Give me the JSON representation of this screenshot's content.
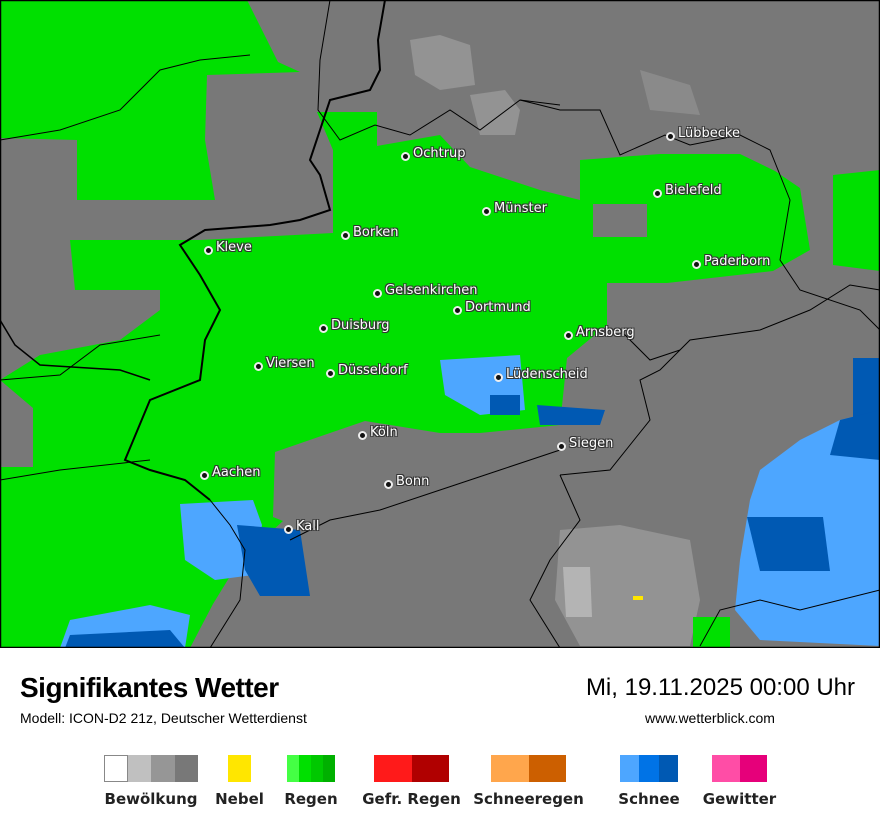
{
  "map": {
    "cities": [
      "Lübbecke",
      "Ochtrup",
      "Bielefeld",
      "Münster",
      "Borken",
      "Kleve",
      "Paderborn",
      "Gelsenkirchen",
      "Dortmund",
      "Duisburg",
      "Arnsberg",
      "Viersen",
      "Düsseldorf",
      "Lüdenscheid",
      "Köln",
      "Siegen",
      "Aachen",
      "Bonn",
      "Kall"
    ],
    "colors": {
      "cloud": "#787878",
      "rain": "#00e000",
      "snow_light": "#4da6ff",
      "snow_dark": "#0059b3",
      "fog": "#ffe600"
    }
  },
  "header": {
    "title": "Signifikantes Wetter",
    "subtitle": "Modell: ICON-D2 21z, Deutscher Wetterdienst",
    "datetime": "Mi, 19.11.2025 00:00 Uhr",
    "url": "www.wetterblick.com"
  },
  "legend": [
    {
      "label": "Bewölkung",
      "colors": [
        "#ffffff",
        "#c0c0c0",
        "#969696",
        "#787878"
      ]
    },
    {
      "label": "Nebel",
      "colors": [
        "#ffe600"
      ]
    },
    {
      "label": "Regen",
      "colors": [
        "#44ff44",
        "#00e000",
        "#00c800",
        "#00b000"
      ]
    },
    {
      "label": "Gefr. Regen",
      "colors": [
        "#ff1a1a",
        "#b00000"
      ]
    },
    {
      "label": "Schneeregen",
      "colors": [
        "#ffa64c",
        "#cc5f00"
      ]
    },
    {
      "label": "Schnee",
      "colors": [
        "#4da6ff",
        "#0073e6",
        "#0059b3"
      ]
    },
    {
      "label": "Gewitter",
      "colors": [
        "#ff4da6",
        "#e6007a"
      ]
    }
  ]
}
